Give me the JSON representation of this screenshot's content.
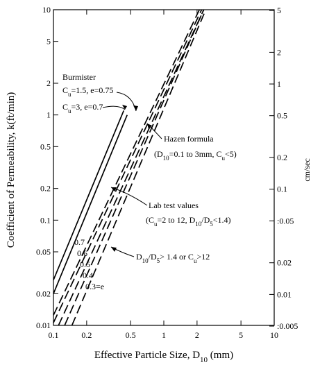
{
  "chart_data": {
    "type": "line",
    "title": "",
    "xlabel": "Effective Particle Size, D",
    "xlabel_sub": "10",
    "xlabel_unit": " (mm)",
    "ylabel": "Coefficient of Permeability, k(ft/min)",
    "y2label": "cm/sec",
    "x_scale": "log",
    "y_scale": "log",
    "xlim": [
      0.1,
      10
    ],
    "ylim": [
      0.01,
      10
    ],
    "x_ticks": [
      0.1,
      0.2,
      0.5,
      1,
      2,
      5,
      10
    ],
    "x_tick_labels": [
      "0.1",
      "0.2",
      "0.5",
      "1",
      "2",
      "5",
      "10"
    ],
    "y_ticks": [
      0.01,
      0.02,
      0.05,
      0.1,
      0.2,
      0.5,
      1,
      2,
      5,
      10
    ],
    "y_tick_labels": [
      "0.01",
      "0.02",
      "0.05",
      "0.1",
      "0.2",
      "0.5",
      "1",
      "2",
      "5",
      "10"
    ],
    "y2_ticks": [
      0.005,
      0.01,
      0.02,
      0.05,
      0.1,
      0.2,
      0.5,
      1,
      2,
      5
    ],
    "y2_tick_labels": [
      ":0.005",
      "0.01",
      "0.02",
      ":0.05",
      "0.1",
      "0.2",
      "0.5",
      "1",
      "2",
      "5"
    ],
    "grid": false,
    "series": [
      {
        "style": "solid",
        "x": [
          0.1,
          0.4333
        ],
        "y": [
          0.027,
          1.1
        ]
      },
      {
        "style": "solid",
        "x": [
          0.1,
          0.4655
        ],
        "y": [
          0.02,
          1.0
        ]
      },
      {
        "style": "dashed",
        "label": "0.7",
        "x": [
          0.1,
          2.1
        ],
        "y": [
          0.0125,
          10
        ]
      },
      {
        "style": "dashed",
        "label": "0.6",
        "x": [
          0.1,
          2.2
        ],
        "y": [
          0.0106,
          10
        ]
      },
      {
        "style": "dashed",
        "label": "0.5",
        "x": [
          0.1111,
          2.3
        ],
        "y": [
          0.01,
          10
        ]
      },
      {
        "style": "dashed",
        "label": "0.4",
        "x": [
          0.1263,
          2.3
        ],
        "y": [
          0.01,
          10
        ]
      },
      {
        "style": "dashed",
        "label": "0.3=e",
        "x": [
          0.1471,
          2.4
        ],
        "y": [
          0.01,
          10
        ]
      }
    ],
    "annotations": {
      "burmister": "Burmister",
      "cu15_a": "C",
      "cu15_sub": "u",
      "cu15_b": "=1.5, e=0.75",
      "cu3_a": "C",
      "cu3_sub": "u",
      "cu3_b": "=3, e=0.7",
      "hazen_title": "Hazen formula",
      "hazen_a": "(D",
      "hazen_sub1": "10",
      "hazen_b": "=0.1 to 3mm, C",
      "hazen_sub2": "u",
      "hazen_c": "<5)",
      "lab_title": "Lab test values",
      "lab_a": "(C",
      "lab_sub1": "u",
      "lab_b": "=2 to 12, D",
      "lab_sub2": "10",
      "lab_c": "/D",
      "lab_sub3": "5",
      "lab_d": "<1.4)",
      "ratio_a": "D",
      "ratio_sub1": "10",
      "ratio_b": "/D",
      "ratio_sub2": "5",
      "ratio_c": "> 1.4 or C",
      "ratio_sub3": "u",
      "ratio_d": ">12"
    }
  }
}
